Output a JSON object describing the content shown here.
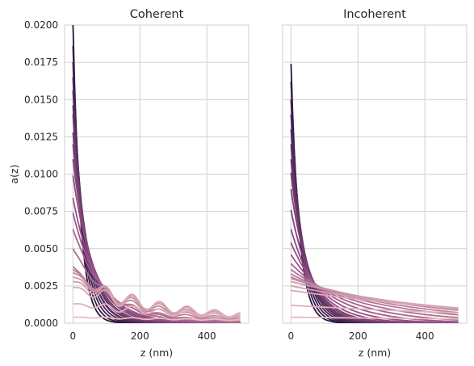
{
  "chart_data": {
    "type": "line",
    "ylabel": "a(z)",
    "ylim": [
      0,
      0.02
    ],
    "yticks": [
      0,
      0.0025,
      0.005,
      0.0075,
      0.01,
      0.0125,
      0.015,
      0.0175,
      0.02
    ],
    "ytick_labels": [
      "0.0000",
      "0.0025",
      "0.0050",
      "0.0075",
      "0.0100",
      "0.0125",
      "0.0150",
      "0.0175",
      "0.0200"
    ],
    "grid": true,
    "sharey": true,
    "colormap_dark": "#2b1645",
    "colormap_light": "#e8bcbc",
    "panels": [
      {
        "title": "Coherent",
        "xlabel": "z (nm)",
        "xlim": [
          -25,
          525
        ],
        "xticks": [
          0,
          200,
          400
        ],
        "xtick_labels": [
          "0",
          "200",
          "400"
        ],
        "series": [
          {
            "a0": 0.02,
            "decay": 22,
            "osc": 0.0
          },
          {
            "a0": 0.0186,
            "decay": 26,
            "osc": 0.0
          },
          {
            "a0": 0.0175,
            "decay": 30,
            "osc": 0.0
          },
          {
            "a0": 0.0165,
            "decay": 34,
            "osc": 0.0
          },
          {
            "a0": 0.0156,
            "decay": 38,
            "osc": 0.0
          },
          {
            "a0": 0.0146,
            "decay": 40,
            "osc": 0.0
          },
          {
            "a0": 0.014,
            "decay": 44,
            "osc": 0.0
          },
          {
            "a0": 0.0128,
            "decay": 48,
            "osc": 0.0
          },
          {
            "a0": 0.012,
            "decay": 52,
            "osc": 0.0
          },
          {
            "a0": 0.011,
            "decay": 58,
            "osc": 0.0
          },
          {
            "a0": 0.0099,
            "decay": 64,
            "osc": 0.0
          },
          {
            "a0": 0.0084,
            "decay": 72,
            "osc": 0.0
          },
          {
            "a0": 0.0074,
            "decay": 80,
            "osc": 0.0
          },
          {
            "a0": 0.0063,
            "decay": 95,
            "osc": 0.05
          },
          {
            "a0": 0.005,
            "decay": 115,
            "osc": 0.1
          },
          {
            "a0": 0.0038,
            "decay": 140,
            "osc": 0.15
          },
          {
            "a0": 0.0036,
            "decay": 170,
            "osc": 0.2
          },
          {
            "a0": 0.0034,
            "decay": 200,
            "osc": 0.22
          },
          {
            "a0": 0.0031,
            "decay": 240,
            "osc": 0.25
          },
          {
            "a0": 0.0028,
            "decay": 280,
            "osc": 0.3
          },
          {
            "a0": 0.0024,
            "decay": 340,
            "osc": 0.3
          },
          {
            "a0": 0.0013,
            "decay": 500,
            "osc": 0.25
          },
          {
            "a0": 0.0004,
            "decay": 800,
            "osc": 0.15
          }
        ]
      },
      {
        "title": "Incoherent",
        "xlabel": "z (nm)",
        "xlim": [
          -25,
          525
        ],
        "xticks": [
          0,
          200,
          400
        ],
        "xtick_labels": [
          "0",
          "200",
          "400"
        ],
        "series": [
          {
            "a0": 0.0174,
            "decay": 24,
            "osc": 0.0
          },
          {
            "a0": 0.0162,
            "decay": 28,
            "osc": 0.0
          },
          {
            "a0": 0.015,
            "decay": 32,
            "osc": 0.0
          },
          {
            "a0": 0.014,
            "decay": 36,
            "osc": 0.0
          },
          {
            "a0": 0.013,
            "decay": 40,
            "osc": 0.0
          },
          {
            "a0": 0.012,
            "decay": 44,
            "osc": 0.0
          },
          {
            "a0": 0.011,
            "decay": 48,
            "osc": 0.0
          },
          {
            "a0": 0.0101,
            "decay": 52,
            "osc": 0.0
          },
          {
            "a0": 0.009,
            "decay": 58,
            "osc": 0.0
          },
          {
            "a0": 0.0076,
            "decay": 66,
            "osc": 0.0
          },
          {
            "a0": 0.0063,
            "decay": 80,
            "osc": 0.0
          },
          {
            "a0": 0.0054,
            "decay": 100,
            "osc": 0.0
          },
          {
            "a0": 0.0046,
            "decay": 130,
            "osc": 0.0
          },
          {
            "a0": 0.004,
            "decay": 170,
            "osc": 0.0
          },
          {
            "a0": 0.0036,
            "decay": 220,
            "osc": 0.0
          },
          {
            "a0": 0.0033,
            "decay": 280,
            "osc": 0.0
          },
          {
            "a0": 0.0031,
            "decay": 340,
            "osc": 0.0
          },
          {
            "a0": 0.003,
            "decay": 400,
            "osc": 0.0
          },
          {
            "a0": 0.0028,
            "decay": 470,
            "osc": 0.0
          },
          {
            "a0": 0.0025,
            "decay": 560,
            "osc": 0.0
          },
          {
            "a0": 0.0022,
            "decay": 650,
            "osc": 0.0
          },
          {
            "a0": 0.0012,
            "decay": 900,
            "osc": 0.0
          },
          {
            "a0": 0.0004,
            "decay": 1500,
            "osc": 0.0
          }
        ]
      }
    ]
  }
}
